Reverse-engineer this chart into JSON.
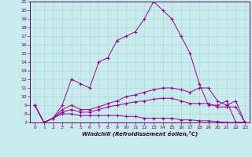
{
  "xlabel": "Windchill (Refroidissement éolien,°C)",
  "background_color": "#c8ecec",
  "grid_color": "#b0d8d8",
  "line_color": "#990099",
  "x": [
    0,
    1,
    2,
    3,
    4,
    5,
    6,
    7,
    8,
    9,
    10,
    11,
    12,
    13,
    14,
    15,
    16,
    17,
    18,
    19,
    20,
    21,
    22,
    23
  ],
  "series": [
    [
      9.0,
      7.0,
      7.5,
      9.0,
      12.0,
      11.5,
      11.0,
      14.0,
      14.5,
      16.5,
      17.0,
      17.5,
      19.0,
      21.0,
      20.0,
      19.0,
      17.0,
      15.0,
      11.5,
      9.0,
      9.0,
      9.5,
      7.0,
      7.0
    ],
    [
      9.0,
      7.0,
      7.5,
      8.5,
      9.0,
      8.5,
      8.5,
      8.8,
      9.2,
      9.5,
      10.0,
      10.2,
      10.5,
      10.8,
      11.0,
      11.0,
      10.8,
      10.5,
      11.0,
      11.0,
      9.5,
      9.0,
      9.5,
      7.0
    ],
    [
      9.0,
      7.0,
      7.5,
      8.2,
      8.5,
      8.2,
      8.2,
      8.5,
      8.8,
      9.0,
      9.2,
      9.4,
      9.5,
      9.7,
      9.8,
      9.8,
      9.5,
      9.2,
      9.2,
      9.2,
      8.8,
      8.8,
      8.8,
      7.0
    ],
    [
      9.0,
      7.0,
      7.5,
      8.0,
      8.0,
      7.8,
      7.8,
      7.8,
      7.8,
      7.8,
      7.7,
      7.7,
      7.5,
      7.5,
      7.5,
      7.5,
      7.3,
      7.3,
      7.2,
      7.2,
      7.1,
      7.0,
      7.0,
      7.0
    ]
  ],
  "ylim": [
    7,
    21
  ],
  "yticks": [
    7,
    8,
    9,
    10,
    11,
    12,
    13,
    14,
    15,
    16,
    17,
    18,
    19,
    20,
    21
  ],
  "xlim": [
    -0.5,
    23.5
  ],
  "xticks": [
    0,
    1,
    2,
    3,
    4,
    5,
    6,
    7,
    8,
    9,
    10,
    11,
    12,
    13,
    14,
    15,
    16,
    17,
    18,
    19,
    20,
    21,
    22,
    23
  ]
}
